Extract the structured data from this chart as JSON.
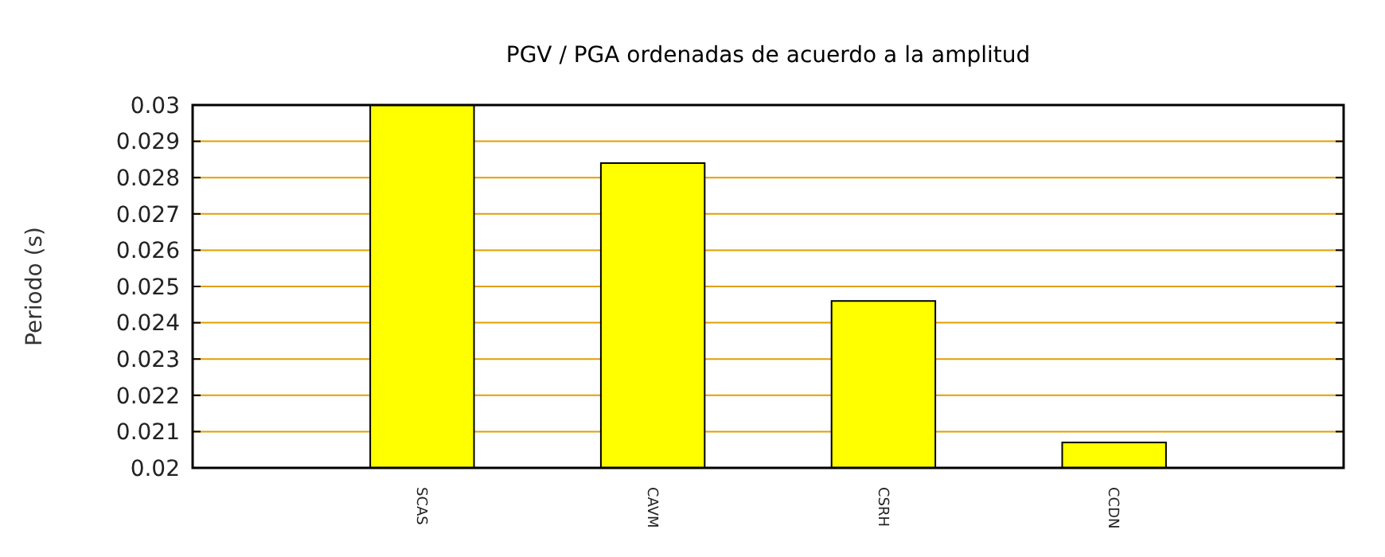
{
  "chart_data": {
    "type": "bar",
    "title": "PGV / PGA ordenadas de acuerdo a la amplitud",
    "ylabel": "Periodo (s)",
    "categories": [
      "SCAS",
      "CAVM",
      "CSRH",
      "CCDN"
    ],
    "values": [
      0.03,
      0.0284,
      0.0246,
      0.0207
    ],
    "color": "#ffff00",
    "ylim": [
      0.02,
      0.03
    ],
    "yticks": [
      0.02,
      0.021,
      0.022,
      0.023,
      0.024,
      0.025,
      0.026,
      0.027,
      0.028,
      0.029,
      0.03
    ],
    "grid": "y"
  }
}
